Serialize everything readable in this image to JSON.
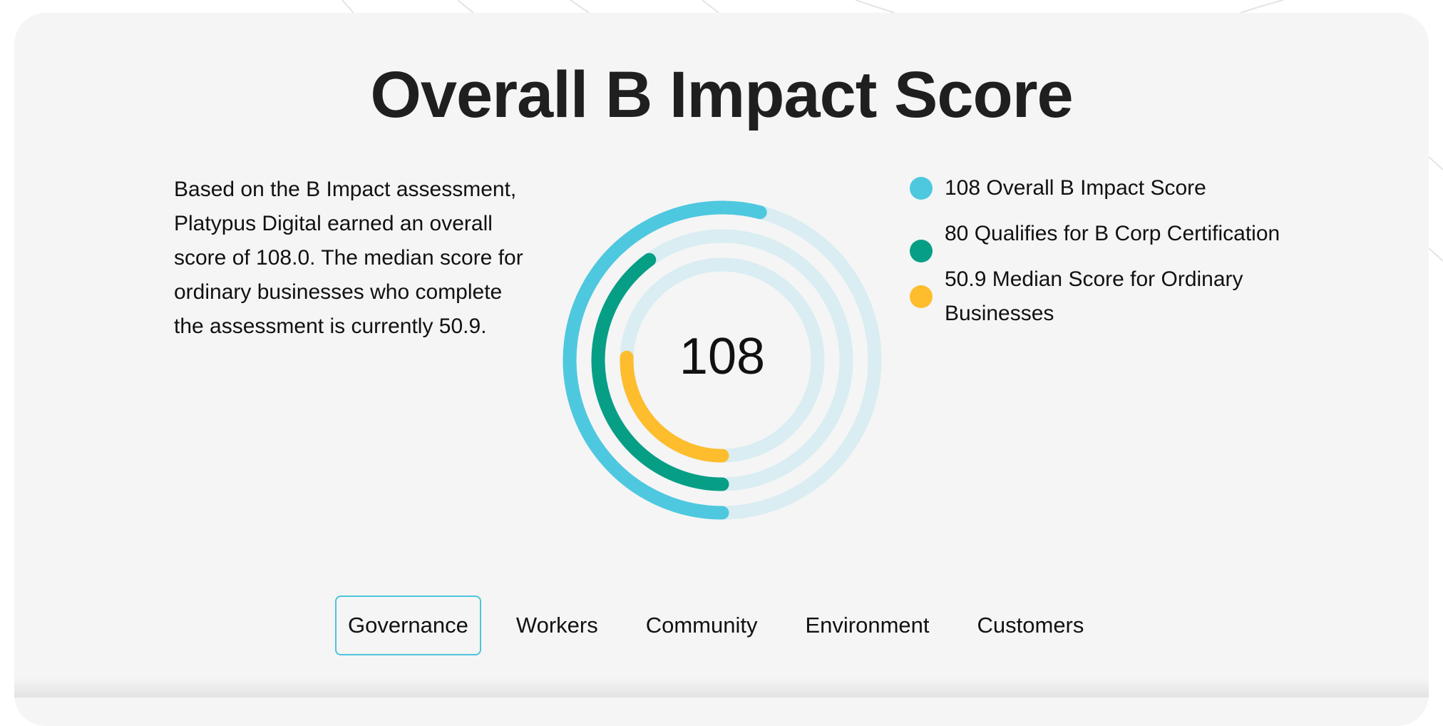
{
  "title": "Overall B Impact Score",
  "description": "Based on the B Impact assessment, Platypus Digital earned an overall score of 108.0. The median score for ordinary businesses who complete the assessment is currently 50.9.",
  "chart_data": {
    "type": "radial-bar",
    "center_label": "108",
    "series": [
      {
        "name": "Overall B Impact Score",
        "value": 108,
        "color": "#4ec8df"
      },
      {
        "name": "Qualifies for B Corp Certification",
        "value": 80,
        "color": "#079e86"
      },
      {
        "name": "Median Score for Ordinary Businesses",
        "value": 50.9,
        "color": "#fdbd2c"
      }
    ],
    "track_color": "#d9edf2"
  },
  "legend": [
    {
      "label": "108 Overall B Impact Score",
      "color": "#4ec8df"
    },
    {
      "label": "80 Qualifies for B Corp Certification",
      "color": "#079e86"
    },
    {
      "label": "50.9 Median Score for Ordinary Businesses",
      "color": "#fdbd2c"
    }
  ],
  "tabs": [
    {
      "label": "Governance",
      "active": true
    },
    {
      "label": "Workers",
      "active": false
    },
    {
      "label": "Community",
      "active": false
    },
    {
      "label": "Environment",
      "active": false
    },
    {
      "label": "Customers",
      "active": false
    }
  ],
  "colors": {
    "card_background": "#f5f5f5",
    "active_tab_border": "#4dc4dc"
  }
}
